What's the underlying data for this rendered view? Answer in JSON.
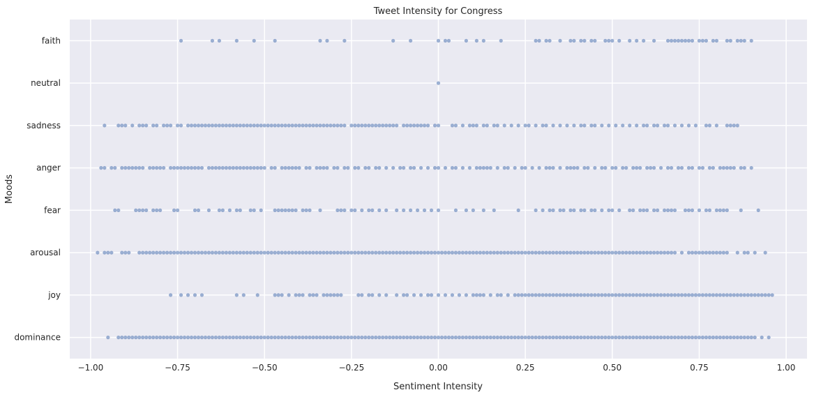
{
  "chart_data": {
    "type": "scatter",
    "title": "Tweet Intensity for Congress",
    "xlabel": "Sentiment Intensity",
    "ylabel": "Moods",
    "xlim": [
      -1.06,
      1.06
    ],
    "xticks": [
      -1.0,
      -0.75,
      -0.5,
      -0.25,
      0.0,
      0.25,
      0.5,
      0.75,
      1.0
    ],
    "xtick_labels": [
      "−1.00",
      "−0.75",
      "−0.50",
      "−0.25",
      "0.00",
      "0.25",
      "0.50",
      "0.75",
      "1.00"
    ],
    "categories": [
      "faith",
      "neutral",
      "sadness",
      "anger",
      "fear",
      "arousal",
      "joy",
      "dominance"
    ],
    "grid": true,
    "colors": {
      "background": "#EAEAF2",
      "grid": "#FFFFFF",
      "point": "#4C72B0"
    },
    "series": [
      {
        "category": "faith",
        "x": [
          -0.74,
          -0.65,
          -0.63,
          -0.58,
          -0.53,
          -0.47,
          -0.34,
          -0.32,
          -0.27,
          -0.13,
          -0.08,
          0.0,
          0.02,
          0.03,
          0.08,
          0.11,
          0.13,
          0.18,
          0.28,
          0.29,
          0.31,
          0.32,
          0.35,
          0.38,
          0.39,
          0.41,
          0.42,
          0.44,
          0.45,
          0.48,
          0.49,
          0.5,
          0.52,
          0.55,
          0.57,
          0.59,
          0.62,
          0.66,
          0.67,
          0.68,
          0.69,
          0.7,
          0.71,
          0.72,
          0.73,
          0.75,
          0.76,
          0.77,
          0.79,
          0.8,
          0.83,
          0.84,
          0.86,
          0.87,
          0.88,
          0.9
        ]
      },
      {
        "category": "neutral",
        "x": [
          0.0
        ]
      },
      {
        "category": "sadness",
        "x": [
          -0.96,
          -0.92,
          -0.91,
          -0.9,
          -0.88,
          -0.86,
          -0.85,
          -0.84,
          -0.82,
          -0.81,
          -0.79,
          -0.78,
          -0.77,
          -0.75,
          -0.74,
          -0.72,
          -0.71,
          -0.7,
          -0.69,
          -0.68,
          -0.67,
          -0.66,
          -0.65,
          -0.64,
          -0.63,
          -0.62,
          -0.61,
          -0.6,
          -0.59,
          -0.58,
          -0.57,
          -0.56,
          -0.55,
          -0.54,
          -0.53,
          -0.52,
          -0.51,
          -0.5,
          -0.49,
          -0.48,
          -0.47,
          -0.46,
          -0.45,
          -0.44,
          -0.43,
          -0.42,
          -0.41,
          -0.4,
          -0.39,
          -0.38,
          -0.37,
          -0.36,
          -0.35,
          -0.34,
          -0.33,
          -0.32,
          -0.31,
          -0.3,
          -0.29,
          -0.28,
          -0.27,
          -0.25,
          -0.24,
          -0.23,
          -0.22,
          -0.21,
          -0.2,
          -0.19,
          -0.18,
          -0.17,
          -0.16,
          -0.15,
          -0.14,
          -0.13,
          -0.12,
          -0.1,
          -0.09,
          -0.08,
          -0.07,
          -0.06,
          -0.05,
          -0.04,
          -0.03,
          -0.01,
          0.0,
          0.04,
          0.05,
          0.07,
          0.09,
          0.1,
          0.11,
          0.13,
          0.14,
          0.16,
          0.17,
          0.19,
          0.21,
          0.23,
          0.25,
          0.26,
          0.28,
          0.3,
          0.31,
          0.33,
          0.35,
          0.37,
          0.39,
          0.41,
          0.42,
          0.44,
          0.45,
          0.47,
          0.49,
          0.51,
          0.53,
          0.55,
          0.57,
          0.59,
          0.6,
          0.62,
          0.63,
          0.65,
          0.66,
          0.68,
          0.7,
          0.72,
          0.74,
          0.77,
          0.78,
          0.8,
          0.83,
          0.84,
          0.85,
          0.86
        ]
      },
      {
        "category": "anger",
        "x": [
          -0.97,
          -0.96,
          -0.94,
          -0.93,
          -0.91,
          -0.9,
          -0.89,
          -0.88,
          -0.87,
          -0.86,
          -0.85,
          -0.83,
          -0.82,
          -0.81,
          -0.8,
          -0.79,
          -0.77,
          -0.76,
          -0.75,
          -0.74,
          -0.73,
          -0.72,
          -0.71,
          -0.7,
          -0.69,
          -0.68,
          -0.66,
          -0.65,
          -0.64,
          -0.63,
          -0.62,
          -0.61,
          -0.6,
          -0.59,
          -0.58,
          -0.57,
          -0.56,
          -0.55,
          -0.54,
          -0.53,
          -0.52,
          -0.51,
          -0.5,
          -0.48,
          -0.47,
          -0.45,
          -0.44,
          -0.43,
          -0.42,
          -0.41,
          -0.4,
          -0.38,
          -0.37,
          -0.35,
          -0.34,
          -0.33,
          -0.32,
          -0.3,
          -0.29,
          -0.27,
          -0.26,
          -0.24,
          -0.23,
          -0.21,
          -0.2,
          -0.18,
          -0.17,
          -0.15,
          -0.13,
          -0.11,
          -0.1,
          -0.08,
          -0.07,
          -0.05,
          -0.03,
          -0.01,
          0.0,
          0.02,
          0.04,
          0.05,
          0.07,
          0.09,
          0.11,
          0.12,
          0.13,
          0.14,
          0.15,
          0.17,
          0.19,
          0.2,
          0.22,
          0.24,
          0.25,
          0.27,
          0.29,
          0.31,
          0.32,
          0.33,
          0.35,
          0.37,
          0.38,
          0.39,
          0.4,
          0.42,
          0.43,
          0.45,
          0.47,
          0.48,
          0.5,
          0.51,
          0.53,
          0.54,
          0.56,
          0.57,
          0.58,
          0.6,
          0.61,
          0.62,
          0.64,
          0.66,
          0.67,
          0.69,
          0.7,
          0.72,
          0.73,
          0.75,
          0.76,
          0.78,
          0.79,
          0.81,
          0.82,
          0.83,
          0.84,
          0.85,
          0.87,
          0.88,
          0.9
        ]
      },
      {
        "category": "fear",
        "x": [
          -0.93,
          -0.92,
          -0.87,
          -0.86,
          -0.85,
          -0.84,
          -0.82,
          -0.81,
          -0.8,
          -0.76,
          -0.75,
          -0.7,
          -0.69,
          -0.66,
          -0.63,
          -0.62,
          -0.6,
          -0.58,
          -0.57,
          -0.54,
          -0.53,
          -0.51,
          -0.47,
          -0.46,
          -0.45,
          -0.44,
          -0.43,
          -0.42,
          -0.41,
          -0.39,
          -0.38,
          -0.37,
          -0.34,
          -0.29,
          -0.28,
          -0.27,
          -0.25,
          -0.24,
          -0.22,
          -0.2,
          -0.19,
          -0.17,
          -0.15,
          -0.12,
          -0.1,
          -0.08,
          -0.06,
          -0.04,
          -0.02,
          0.0,
          0.05,
          0.08,
          0.1,
          0.13,
          0.16,
          0.23,
          0.28,
          0.3,
          0.32,
          0.33,
          0.35,
          0.36,
          0.38,
          0.39,
          0.41,
          0.42,
          0.44,
          0.45,
          0.47,
          0.49,
          0.5,
          0.52,
          0.55,
          0.56,
          0.58,
          0.59,
          0.6,
          0.62,
          0.63,
          0.65,
          0.66,
          0.67,
          0.68,
          0.71,
          0.72,
          0.73,
          0.75,
          0.77,
          0.78,
          0.8,
          0.81,
          0.82,
          0.83,
          0.87,
          0.92
        ]
      },
      {
        "category": "arousal",
        "x": [
          -0.98,
          -0.96,
          -0.95,
          -0.94,
          -0.91,
          -0.9,
          -0.89,
          -0.86,
          -0.85,
          -0.84,
          -0.83,
          -0.82,
          -0.81,
          -0.8,
          -0.79,
          -0.78,
          -0.77,
          -0.76,
          -0.75,
          -0.74,
          -0.73,
          -0.72,
          -0.71,
          -0.7,
          -0.69,
          -0.68,
          -0.67,
          -0.66,
          -0.65,
          -0.64,
          -0.63,
          -0.62,
          -0.61,
          -0.6,
          -0.59,
          -0.58,
          -0.57,
          -0.56,
          -0.55,
          -0.54,
          -0.53,
          -0.52,
          -0.51,
          -0.5,
          -0.49,
          -0.48,
          -0.47,
          -0.46,
          -0.45,
          -0.44,
          -0.43,
          -0.42,
          -0.41,
          -0.4,
          -0.39,
          -0.38,
          -0.37,
          -0.36,
          -0.35,
          -0.34,
          -0.33,
          -0.32,
          -0.31,
          -0.3,
          -0.29,
          -0.28,
          -0.27,
          -0.26,
          -0.25,
          -0.24,
          -0.23,
          -0.22,
          -0.21,
          -0.2,
          -0.19,
          -0.18,
          -0.17,
          -0.16,
          -0.15,
          -0.14,
          -0.13,
          -0.12,
          -0.11,
          -0.1,
          -0.09,
          -0.08,
          -0.07,
          -0.06,
          -0.05,
          -0.04,
          -0.03,
          -0.02,
          -0.01,
          0.0,
          0.01,
          0.02,
          0.03,
          0.04,
          0.05,
          0.06,
          0.07,
          0.08,
          0.09,
          0.1,
          0.11,
          0.12,
          0.13,
          0.14,
          0.15,
          0.16,
          0.17,
          0.18,
          0.19,
          0.2,
          0.21,
          0.22,
          0.23,
          0.24,
          0.25,
          0.26,
          0.27,
          0.28,
          0.29,
          0.3,
          0.31,
          0.32,
          0.33,
          0.34,
          0.35,
          0.36,
          0.37,
          0.38,
          0.39,
          0.4,
          0.41,
          0.42,
          0.43,
          0.44,
          0.45,
          0.46,
          0.47,
          0.48,
          0.49,
          0.5,
          0.51,
          0.52,
          0.53,
          0.54,
          0.55,
          0.56,
          0.57,
          0.58,
          0.59,
          0.6,
          0.61,
          0.62,
          0.63,
          0.64,
          0.65,
          0.66,
          0.67,
          0.68,
          0.7,
          0.72,
          0.73,
          0.74,
          0.75,
          0.76,
          0.77,
          0.78,
          0.79,
          0.8,
          0.81,
          0.82,
          0.83,
          0.86,
          0.88,
          0.89,
          0.91,
          0.94
        ]
      },
      {
        "category": "joy",
        "x": [
          -0.77,
          -0.74,
          -0.72,
          -0.7,
          -0.68,
          -0.58,
          -0.56,
          -0.52,
          -0.47,
          -0.46,
          -0.45,
          -0.43,
          -0.41,
          -0.4,
          -0.39,
          -0.37,
          -0.36,
          -0.35,
          -0.33,
          -0.32,
          -0.31,
          -0.3,
          -0.29,
          -0.28,
          -0.23,
          -0.22,
          -0.2,
          -0.19,
          -0.17,
          -0.15,
          -0.12,
          -0.1,
          -0.09,
          -0.07,
          -0.05,
          -0.03,
          -0.02,
          0.0,
          0.02,
          0.04,
          0.06,
          0.08,
          0.1,
          0.11,
          0.12,
          0.13,
          0.15,
          0.17,
          0.18,
          0.2,
          0.22,
          0.23,
          0.24,
          0.25,
          0.26,
          0.27,
          0.28,
          0.29,
          0.3,
          0.31,
          0.32,
          0.33,
          0.34,
          0.35,
          0.36,
          0.37,
          0.38,
          0.39,
          0.4,
          0.41,
          0.42,
          0.43,
          0.44,
          0.45,
          0.46,
          0.47,
          0.48,
          0.49,
          0.5,
          0.51,
          0.52,
          0.53,
          0.54,
          0.55,
          0.56,
          0.57,
          0.58,
          0.59,
          0.6,
          0.61,
          0.62,
          0.63,
          0.64,
          0.65,
          0.66,
          0.67,
          0.68,
          0.69,
          0.7,
          0.71,
          0.72,
          0.73,
          0.74,
          0.75,
          0.76,
          0.77,
          0.78,
          0.79,
          0.8,
          0.81,
          0.82,
          0.83,
          0.84,
          0.85,
          0.86,
          0.87,
          0.88,
          0.89,
          0.9,
          0.91,
          0.92,
          0.93,
          0.94,
          0.95,
          0.96
        ]
      },
      {
        "category": "dominance",
        "x": [
          -0.95,
          -0.92,
          -0.91,
          -0.9,
          -0.89,
          -0.88,
          -0.87,
          -0.86,
          -0.85,
          -0.84,
          -0.83,
          -0.82,
          -0.81,
          -0.8,
          -0.79,
          -0.78,
          -0.77,
          -0.76,
          -0.75,
          -0.74,
          -0.73,
          -0.72,
          -0.71,
          -0.7,
          -0.69,
          -0.68,
          -0.67,
          -0.66,
          -0.65,
          -0.64,
          -0.63,
          -0.62,
          -0.61,
          -0.6,
          -0.59,
          -0.58,
          -0.57,
          -0.56,
          -0.55,
          -0.54,
          -0.53,
          -0.52,
          -0.51,
          -0.5,
          -0.49,
          -0.48,
          -0.47,
          -0.46,
          -0.45,
          -0.44,
          -0.43,
          -0.42,
          -0.41,
          -0.4,
          -0.39,
          -0.38,
          -0.37,
          -0.36,
          -0.35,
          -0.34,
          -0.33,
          -0.32,
          -0.31,
          -0.3,
          -0.29,
          -0.28,
          -0.27,
          -0.26,
          -0.25,
          -0.24,
          -0.23,
          -0.22,
          -0.21,
          -0.2,
          -0.19,
          -0.18,
          -0.17,
          -0.16,
          -0.15,
          -0.14,
          -0.13,
          -0.12,
          -0.11,
          -0.1,
          -0.09,
          -0.08,
          -0.07,
          -0.06,
          -0.05,
          -0.04,
          -0.03,
          -0.02,
          -0.01,
          0.0,
          0.01,
          0.02,
          0.03,
          0.04,
          0.05,
          0.06,
          0.07,
          0.08,
          0.09,
          0.1,
          0.11,
          0.12,
          0.13,
          0.14,
          0.15,
          0.16,
          0.17,
          0.18,
          0.19,
          0.2,
          0.21,
          0.22,
          0.23,
          0.24,
          0.25,
          0.26,
          0.27,
          0.28,
          0.29,
          0.3,
          0.31,
          0.32,
          0.33,
          0.34,
          0.35,
          0.36,
          0.37,
          0.38,
          0.39,
          0.4,
          0.41,
          0.42,
          0.43,
          0.44,
          0.45,
          0.46,
          0.47,
          0.48,
          0.49,
          0.5,
          0.51,
          0.52,
          0.53,
          0.54,
          0.55,
          0.56,
          0.57,
          0.58,
          0.59,
          0.6,
          0.61,
          0.62,
          0.63,
          0.64,
          0.65,
          0.66,
          0.67,
          0.68,
          0.69,
          0.7,
          0.71,
          0.72,
          0.73,
          0.74,
          0.75,
          0.76,
          0.77,
          0.78,
          0.79,
          0.8,
          0.81,
          0.82,
          0.83,
          0.84,
          0.85,
          0.86,
          0.87,
          0.88,
          0.89,
          0.9,
          0.91,
          0.93,
          0.95
        ]
      }
    ]
  }
}
